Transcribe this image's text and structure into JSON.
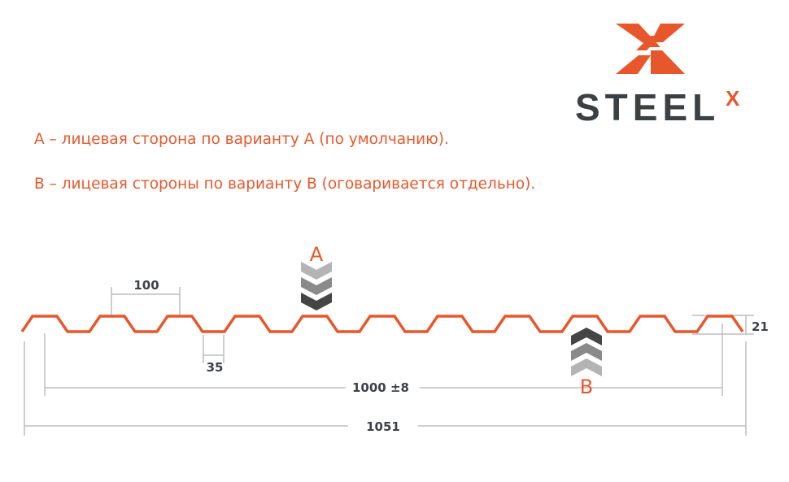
{
  "logo": {
    "text": "STEEL",
    "superscript": "X",
    "brand_color": "#e8572b",
    "text_color": "#3c4043"
  },
  "notes": [
    "A – лицевая сторона по варианту А (по умолчанию).",
    "B – лицевая стороны по варианту В (оговаривается отдельно)."
  ],
  "diagram": {
    "profile_color": "#e8572b",
    "dimension_color": "#bdbdbd",
    "labels": {
      "pitch": "100",
      "bottom_width": "35",
      "height": "21",
      "useful_width": "1000 ±8",
      "total_width": "1051",
      "side_a": "A",
      "side_b": "B"
    }
  }
}
